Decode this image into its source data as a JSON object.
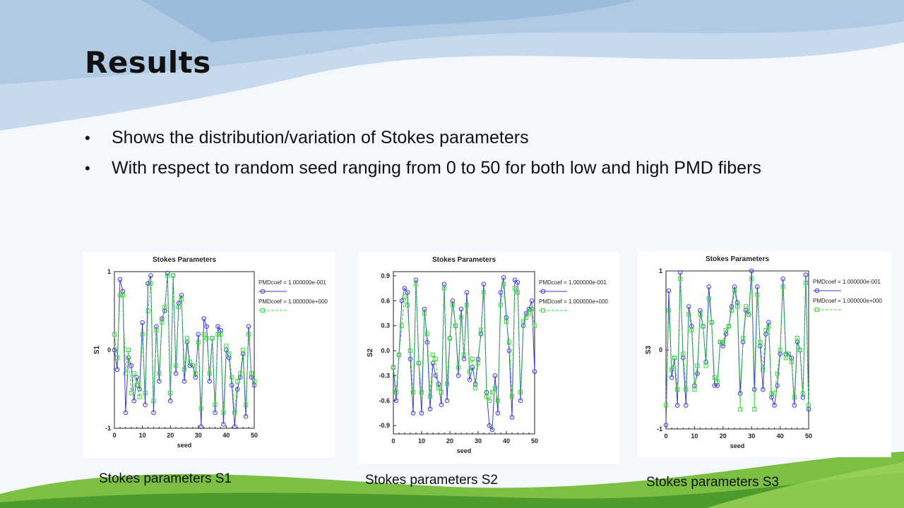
{
  "slide": {
    "title": "Results",
    "bullets": [
      "Shows the distribution/variation of Stokes parameters",
      "With respect to random  seed ranging  from  0  to  50  for  both  low  and  high PMD fibers"
    ],
    "captions": [
      "Stokes parameters S1",
      "Stokes parameters S2",
      "Stokes parameters S3"
    ]
  },
  "colors": {
    "series_low": "#3b3bd6",
    "series_high": "#38d838",
    "title_text": "#111111"
  },
  "chart_data": [
    {
      "type": "line",
      "title": "Stokes Parameters",
      "xlabel": "seed",
      "ylabel": "S1",
      "xlim": [
        0,
        50
      ],
      "ylim": [
        -1,
        1
      ],
      "xticks": [
        0,
        10,
        20,
        30,
        40,
        50
      ],
      "yticks": [
        1,
        0,
        -1
      ],
      "legend_position": "top-right",
      "x": [
        0,
        1,
        2,
        3,
        4,
        5,
        6,
        7,
        8,
        9,
        10,
        11,
        12,
        13,
        14,
        15,
        16,
        17,
        18,
        19,
        20,
        21,
        22,
        23,
        24,
        25,
        26,
        27,
        28,
        29,
        30,
        31,
        32,
        33,
        34,
        35,
        36,
        37,
        38,
        39,
        40,
        41,
        42,
        43,
        44,
        45,
        46,
        47,
        48,
        49,
        50
      ],
      "series": [
        {
          "name": "PMDcoef = 1.000000e-001",
          "marker": "circle",
          "dash": "solid",
          "values": [
            0.0,
            -0.25,
            0.9,
            0.75,
            -0.8,
            -0.1,
            -0.2,
            -0.65,
            -0.35,
            -0.5,
            0.35,
            -0.7,
            0.85,
            0.95,
            -0.8,
            0.3,
            -0.4,
            0.4,
            0.5,
            0.98,
            -0.65,
            0.95,
            -0.3,
            0.6,
            0.7,
            -0.4,
            0.1,
            -0.2,
            -0.2,
            -0.35,
            0.2,
            -0.98,
            0.4,
            0.3,
            -0.4,
            0.15,
            -0.8,
            0.3,
            0.25,
            -0.95,
            0.0,
            -0.1,
            -0.45,
            -0.98,
            -0.5,
            -0.35,
            -0.05,
            -0.85,
            0.3,
            -0.35,
            -0.45
          ]
        },
        {
          "name": "PMDcoef = 1.000000e+000",
          "marker": "square",
          "dash": "dashed",
          "values": [
            0.2,
            -0.1,
            0.7,
            0.7,
            -0.3,
            0.0,
            -0.55,
            -0.3,
            -0.45,
            -0.6,
            0.2,
            -0.55,
            0.5,
            0.85,
            -0.65,
            0.25,
            -0.3,
            0.35,
            0.55,
            0.95,
            -0.55,
            0.95,
            -0.2,
            0.55,
            0.65,
            -0.25,
            0.15,
            -0.15,
            -0.2,
            -0.3,
            0.1,
            -0.75,
            0.2,
            0.15,
            -0.3,
            0.15,
            -0.7,
            0.2,
            0.2,
            -0.8,
            0.05,
            -0.05,
            -0.35,
            -0.8,
            -0.4,
            -0.3,
            0.0,
            -0.7,
            0.2,
            -0.3,
            -0.4
          ]
        }
      ]
    },
    {
      "type": "line",
      "title": "Stokes Parameters",
      "xlabel": "seed",
      "ylabel": "S2",
      "xlim": [
        0,
        50
      ],
      "ylim": [
        -1,
        0.95
      ],
      "xticks": [
        0,
        10,
        20,
        30,
        40,
        50
      ],
      "yticks": [
        0.9,
        0.6,
        0.3,
        0.0,
        -0.3,
        -0.6,
        -0.9
      ],
      "legend_position": "top-right",
      "x": [
        0,
        1,
        2,
        3,
        4,
        5,
        6,
        7,
        8,
        9,
        10,
        11,
        12,
        13,
        14,
        15,
        16,
        17,
        18,
        19,
        20,
        21,
        22,
        23,
        24,
        25,
        26,
        27,
        28,
        29,
        30,
        31,
        32,
        33,
        34,
        35,
        36,
        37,
        38,
        39,
        40,
        41,
        42,
        43,
        44,
        45,
        46,
        47,
        48,
        49,
        50
      ],
      "series": [
        {
          "name": "PMDcoef = 1.000000e-001",
          "marker": "circle",
          "dash": "solid",
          "values": [
            -0.2,
            -0.6,
            -0.05,
            0.6,
            0.75,
            0.7,
            -0.1,
            -0.75,
            0.85,
            -0.15,
            -0.75,
            0.5,
            0.1,
            -0.7,
            -0.15,
            -0.3,
            -0.4,
            -0.65,
            0.8,
            -0.6,
            0.15,
            0.6,
            0.3,
            -0.3,
            0.5,
            -0.1,
            0.7,
            -0.35,
            -0.2,
            -0.4,
            -0.1,
            0.2,
            0.8,
            -0.5,
            -0.9,
            -0.95,
            -0.3,
            -0.75,
            0.7,
            0.88,
            0.4,
            0.0,
            -0.8,
            0.85,
            0.82,
            -0.6,
            0.3,
            0.45,
            0.5,
            0.6,
            -0.25
          ]
        },
        {
          "name": "PMDcoef = 1.000000e+000",
          "marker": "square",
          "dash": "dashed",
          "values": [
            -0.2,
            -0.5,
            -0.05,
            0.3,
            0.65,
            0.55,
            0.0,
            -0.5,
            0.8,
            -0.15,
            -0.5,
            0.45,
            0.2,
            -0.55,
            -0.05,
            -0.1,
            -0.45,
            -0.5,
            0.75,
            -0.4,
            0.15,
            0.55,
            0.3,
            -0.2,
            0.4,
            -0.05,
            0.55,
            -0.25,
            -0.1,
            -0.45,
            -0.15,
            0.25,
            0.7,
            -0.55,
            -0.6,
            -0.5,
            -0.45,
            -0.6,
            0.55,
            0.8,
            0.35,
            0.1,
            -0.55,
            0.75,
            0.7,
            -0.5,
            0.35,
            0.4,
            0.45,
            0.5,
            0.3
          ]
        }
      ]
    },
    {
      "type": "line",
      "title": "Stokes Parameters",
      "xlabel": "seed",
      "ylabel": "S3",
      "xlim": [
        0,
        50
      ],
      "ylim": [
        -1,
        1
      ],
      "xticks": [
        0,
        10,
        20,
        30,
        40,
        50
      ],
      "yticks": [
        1,
        0,
        -1
      ],
      "legend_position": "top-right",
      "x": [
        0,
        1,
        2,
        3,
        4,
        5,
        6,
        7,
        8,
        9,
        10,
        11,
        12,
        13,
        14,
        15,
        16,
        17,
        18,
        19,
        20,
        21,
        22,
        23,
        24,
        25,
        26,
        27,
        28,
        29,
        30,
        31,
        32,
        33,
        34,
        35,
        36,
        37,
        38,
        39,
        40,
        41,
        42,
        43,
        44,
        45,
        46,
        47,
        48,
        49,
        50
      ],
      "series": [
        {
          "name": "PMDcoef = 1.000000e-001",
          "marker": "circle",
          "dash": "solid",
          "values": [
            -0.95,
            0.75,
            -0.35,
            -0.1,
            -0.7,
            0.98,
            -0.1,
            -0.7,
            0.55,
            0.3,
            -0.45,
            -0.3,
            0.5,
            0.3,
            -0.15,
            0.8,
            0.35,
            -0.45,
            -0.45,
            0.1,
            0.05,
            0.2,
            0.3,
            0.55,
            0.8,
            0.6,
            -0.55,
            0.1,
            0.5,
            0.45,
            1.0,
            -0.5,
            0.8,
            0.05,
            -0.5,
            0.2,
            0.35,
            -0.6,
            -0.7,
            -0.45,
            -0.05,
            0.9,
            -0.05,
            -0.05,
            -0.1,
            -0.7,
            0.1,
            0.0,
            -0.6,
            0.95,
            -0.75
          ]
        },
        {
          "name": "PMDcoef = 1.000000e+000",
          "marker": "square",
          "dash": "dashed",
          "values": [
            -0.7,
            0.5,
            -0.25,
            -0.1,
            -0.5,
            0.9,
            -0.05,
            -0.5,
            0.45,
            0.25,
            -0.5,
            -0.2,
            0.45,
            0.3,
            -0.2,
            0.65,
            0.35,
            -0.35,
            -0.4,
            0.1,
            0.1,
            0.25,
            0.3,
            0.5,
            0.75,
            0.55,
            -0.75,
            0.15,
            0.55,
            0.45,
            0.9,
            -0.75,
            0.7,
            0.1,
            -0.25,
            0.25,
            0.3,
            -0.55,
            -0.55,
            -0.3,
            0.0,
            0.8,
            -0.1,
            -0.05,
            -0.15,
            -0.6,
            0.15,
            0.0,
            -0.55,
            0.85,
            -0.7
          ]
        }
      ]
    }
  ]
}
